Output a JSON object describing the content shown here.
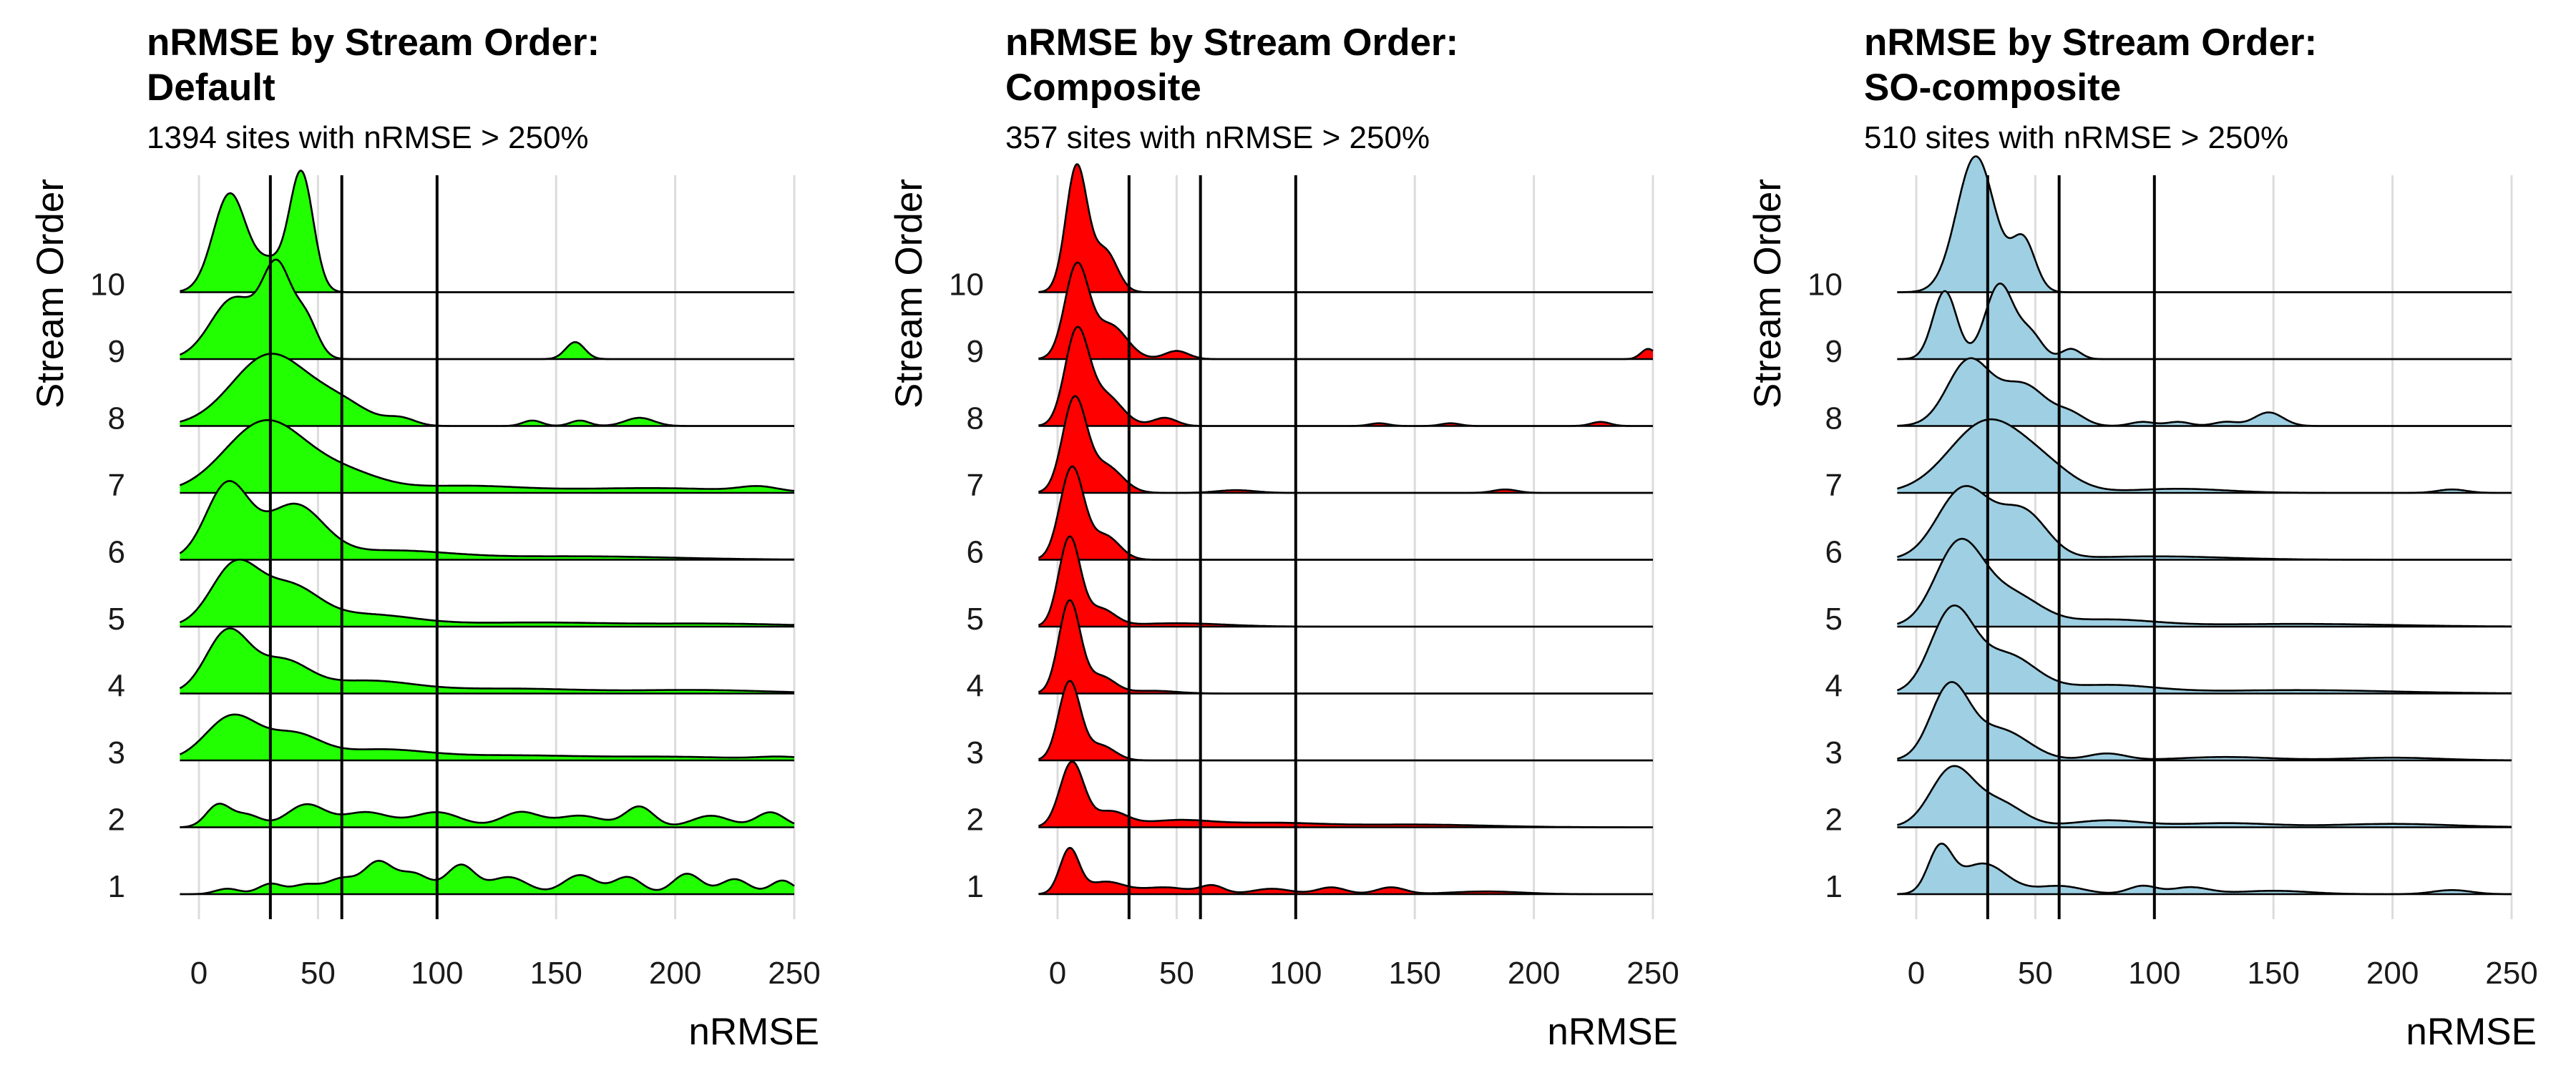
{
  "panels": [
    {
      "title": "nRMSE by Stream Order:\nDefault",
      "subtitle": "1394 sites with nRMSE > 250%"
    },
    {
      "title": "nRMSE by Stream Order:\nComposite",
      "subtitle": "357 sites with nRMSE > 250%"
    },
    {
      "title": "nRMSE by Stream Order:\nSO-composite",
      "subtitle": "510 sites with nRMSE > 250%"
    }
  ],
  "chart_data": [
    {
      "type": "ridgeline",
      "title": "nRMSE by Stream Order:\nDefault",
      "subtitle": "1394 sites with nRMSE > 250%",
      "xlabel": "nRMSE",
      "ylabel": "Stream Order",
      "fill_color": "#22ff00",
      "xlim": [
        -10,
        250
      ],
      "x_ticks": [
        0,
        50,
        100,
        150,
        200,
        250
      ],
      "categories": [
        "1",
        "2",
        "3",
        "4",
        "5",
        "6",
        "7",
        "8",
        "9",
        "10"
      ],
      "reference_lines": [
        30,
        60,
        100
      ],
      "grid": true,
      "series": [
        {
          "name": "1",
          "peaks": [
            [
              12,
              0.08,
              5
            ],
            [
              30,
              0.15,
              5
            ],
            [
              45,
              0.14,
              6
            ],
            [
              60,
              0.22,
              6
            ],
            [
              75,
              0.45,
              6
            ],
            [
              90,
              0.3,
              7
            ],
            [
              110,
              0.42,
              6
            ],
            [
              130,
              0.25,
              8
            ],
            [
              160,
              0.28,
              7
            ],
            [
              180,
              0.25,
              6
            ],
            [
              205,
              0.3,
              6
            ],
            [
              225,
              0.22,
              6
            ],
            [
              245,
              0.2,
              5
            ]
          ]
        },
        {
          "name": "2",
          "peaks": [
            [
              8,
              0.32,
              5
            ],
            [
              20,
              0.18,
              6
            ],
            [
              45,
              0.33,
              8
            ],
            [
              70,
              0.22,
              10
            ],
            [
              100,
              0.22,
              10
            ],
            [
              135,
              0.22,
              8
            ],
            [
              160,
              0.17,
              10
            ],
            [
              185,
              0.3,
              6
            ],
            [
              215,
              0.17,
              8
            ],
            [
              240,
              0.22,
              6
            ]
          ]
        },
        {
          "name": "3",
          "peaks": [
            [
              14,
              0.65,
              11
            ],
            [
              40,
              0.35,
              11
            ],
            [
              75,
              0.15,
              20
            ],
            [
              130,
              0.07,
              30
            ],
            [
              200,
              0.05,
              30
            ],
            [
              245,
              0.04,
              10
            ]
          ]
        },
        {
          "name": "4",
          "peaks": [
            [
              12,
              0.9,
              9
            ],
            [
              35,
              0.45,
              11
            ],
            [
              70,
              0.18,
              20
            ],
            [
              130,
              0.07,
              30
            ],
            [
              210,
              0.05,
              30
            ]
          ]
        },
        {
          "name": "5",
          "peaks": [
            [
              15,
              0.88,
              10
            ],
            [
              38,
              0.55,
              12
            ],
            [
              70,
              0.17,
              20
            ],
            [
              140,
              0.06,
              35
            ],
            [
              220,
              0.04,
              30
            ]
          ]
        },
        {
          "name": "6",
          "peaks": [
            [
              12,
              1.1,
              9
            ],
            [
              40,
              0.78,
              12
            ],
            [
              80,
              0.13,
              25
            ],
            [
              160,
              0.05,
              40
            ]
          ]
        },
        {
          "name": "7",
          "peaks": [
            [
              28,
              1.05,
              17
            ],
            [
              62,
              0.25,
              15
            ],
            [
              110,
              0.1,
              25
            ],
            [
              190,
              0.07,
              35
            ],
            [
              235,
              0.07,
              8
            ]
          ]
        },
        {
          "name": "8",
          "peaks": [
            [
              30,
              1.05,
              16
            ],
            [
              60,
              0.28,
              12
            ],
            [
              85,
              0.1,
              6
            ],
            [
              140,
              0.08,
              4
            ],
            [
              160,
              0.08,
              4
            ],
            [
              185,
              0.12,
              6
            ]
          ]
        },
        {
          "name": "9",
          "peaks": [
            [
              15,
              0.9,
              10
            ],
            [
              33,
              1.25,
              6
            ],
            [
              45,
              0.55,
              5
            ],
            [
              158,
              0.25,
              4
            ]
          ]
        },
        {
          "name": "10",
          "peaks": [
            [
              13,
              1.45,
              7
            ],
            [
              43,
              1.75,
              5
            ],
            [
              30,
              0.4,
              6
            ]
          ]
        }
      ]
    },
    {
      "type": "ridgeline",
      "title": "nRMSE by Stream Order:\nComposite",
      "subtitle": "357 sites with nRMSE > 250%",
      "xlabel": "nRMSE",
      "ylabel": "Stream Order",
      "fill_color": "#ff0000",
      "xlim": [
        -10,
        250
      ],
      "x_ticks": [
        0,
        50,
        100,
        150,
        200,
        250
      ],
      "categories": [
        "1",
        "2",
        "3",
        "4",
        "5",
        "6",
        "7",
        "8",
        "9",
        "10"
      ],
      "reference_lines": [
        30,
        60,
        100
      ],
      "grid": true,
      "series": [
        {
          "name": "1",
          "peaks": [
            [
              5,
              0.65,
              4
            ],
            [
              20,
              0.18,
              8
            ],
            [
              45,
              0.1,
              10
            ],
            [
              65,
              0.12,
              5
            ],
            [
              90,
              0.08,
              8
            ],
            [
              115,
              0.1,
              6
            ],
            [
              140,
              0.1,
              6
            ],
            [
              180,
              0.04,
              15
            ]
          ]
        },
        {
          "name": "2",
          "peaks": [
            [
              6,
              0.95,
              5
            ],
            [
              22,
              0.22,
              7
            ],
            [
              50,
              0.1,
              15
            ],
            [
              90,
              0.06,
              20
            ],
            [
              150,
              0.04,
              30
            ]
          ]
        },
        {
          "name": "3",
          "peaks": [
            [
              5,
              1.15,
              4.5
            ],
            [
              18,
              0.22,
              6
            ]
          ]
        },
        {
          "name": "4",
          "peaks": [
            [
              5,
              1.35,
              4.5
            ],
            [
              18,
              0.25,
              6
            ],
            [
              40,
              0.04,
              10
            ]
          ]
        },
        {
          "name": "5",
          "peaks": [
            [
              5,
              1.3,
              4.5
            ],
            [
              18,
              0.25,
              6
            ],
            [
              50,
              0.05,
              20
            ]
          ]
        },
        {
          "name": "6",
          "peaks": [
            [
              6,
              1.35,
              5
            ],
            [
              20,
              0.35,
              6
            ]
          ]
        },
        {
          "name": "7",
          "peaks": [
            [
              7,
              1.35,
              5
            ],
            [
              20,
              0.4,
              7
            ],
            [
              75,
              0.04,
              8
            ],
            [
              188,
              0.05,
              5
            ]
          ]
        },
        {
          "name": "8",
          "peaks": [
            [
              8,
              1.35,
              5
            ],
            [
              20,
              0.45,
              7
            ],
            [
              45,
              0.12,
              5
            ],
            [
              135,
              0.04,
              4
            ],
            [
              165,
              0.04,
              4
            ],
            [
              228,
              0.06,
              4
            ]
          ]
        },
        {
          "name": "9",
          "peaks": [
            [
              8,
              1.35,
              5
            ],
            [
              22,
              0.5,
              7
            ],
            [
              50,
              0.12,
              5
            ],
            [
              248,
              0.15,
              3
            ]
          ]
        },
        {
          "name": "10",
          "peaks": [
            [
              8,
              1.85,
              4.5
            ],
            [
              20,
              0.6,
              5
            ]
          ]
        }
      ]
    },
    {
      "type": "ridgeline",
      "title": "nRMSE by Stream Order:\nSO-composite",
      "subtitle": "510 sites with nRMSE > 250%",
      "xlabel": "nRMSE",
      "ylabel": "Stream Order",
      "fill_color": "#9ecfe2",
      "xlim": [
        -10,
        250
      ],
      "x_ticks": [
        0,
        50,
        100,
        150,
        200,
        250
      ],
      "categories": [
        "1",
        "2",
        "3",
        "4",
        "5",
        "6",
        "7",
        "8",
        "9",
        "10"
      ],
      "reference_lines": [
        30,
        60,
        100
      ],
      "grid": true,
      "series": [
        {
          "name": "1",
          "peaks": [
            [
              10,
              0.65,
              5
            ],
            [
              28,
              0.45,
              10
            ],
            [
              60,
              0.12,
              10
            ],
            [
              95,
              0.12,
              6
            ],
            [
              115,
              0.1,
              8
            ],
            [
              150,
              0.05,
              15
            ],
            [
              225,
              0.06,
              8
            ]
          ]
        },
        {
          "name": "2",
          "peaks": [
            [
              15,
              0.85,
              9
            ],
            [
              35,
              0.35,
              10
            ],
            [
              80,
              0.1,
              15
            ],
            [
              130,
              0.06,
              20
            ],
            [
              200,
              0.05,
              25
            ]
          ]
        },
        {
          "name": "3",
          "peaks": [
            [
              14,
              1.05,
              8
            ],
            [
              35,
              0.45,
              12
            ],
            [
              80,
              0.1,
              8
            ],
            [
              130,
              0.05,
              20
            ],
            [
              200,
              0.04,
              20
            ]
          ]
        },
        {
          "name": "4",
          "peaks": [
            [
              15,
              1.2,
              9
            ],
            [
              38,
              0.55,
              12
            ],
            [
              80,
              0.12,
              20
            ],
            [
              160,
              0.05,
              40
            ]
          ]
        },
        {
          "name": "5",
          "peaks": [
            [
              18,
              1.2,
              10
            ],
            [
              40,
              0.45,
              12
            ],
            [
              80,
              0.1,
              20
            ],
            [
              160,
              0.04,
              40
            ]
          ]
        },
        {
          "name": "6",
          "peaks": [
            [
              20,
              1.05,
              11
            ],
            [
              45,
              0.68,
              10
            ],
            [
              100,
              0.05,
              30
            ]
          ]
        },
        {
          "name": "7",
          "peaks": [
            [
              30,
              1.05,
              16
            ],
            [
              55,
              0.25,
              12
            ],
            [
              110,
              0.06,
              20
            ],
            [
              225,
              0.05,
              6
            ]
          ]
        },
        {
          "name": "8",
          "peaks": [
            [
              22,
              0.95,
              9
            ],
            [
              45,
              0.6,
              10
            ],
            [
              65,
              0.15,
              6
            ],
            [
              95,
              0.06,
              5
            ],
            [
              110,
              0.06,
              5
            ],
            [
              148,
              0.2,
              6
            ],
            [
              130,
              0.06,
              5
            ]
          ]
        },
        {
          "name": "9",
          "peaks": [
            [
              12,
              1.0,
              5
            ],
            [
              35,
              1.1,
              6
            ],
            [
              48,
              0.35,
              5
            ],
            [
              65,
              0.15,
              4
            ]
          ]
        },
        {
          "name": "10",
          "peaks": [
            [
              25,
              2.0,
              8
            ],
            [
              45,
              0.75,
              5
            ]
          ]
        }
      ]
    }
  ]
}
